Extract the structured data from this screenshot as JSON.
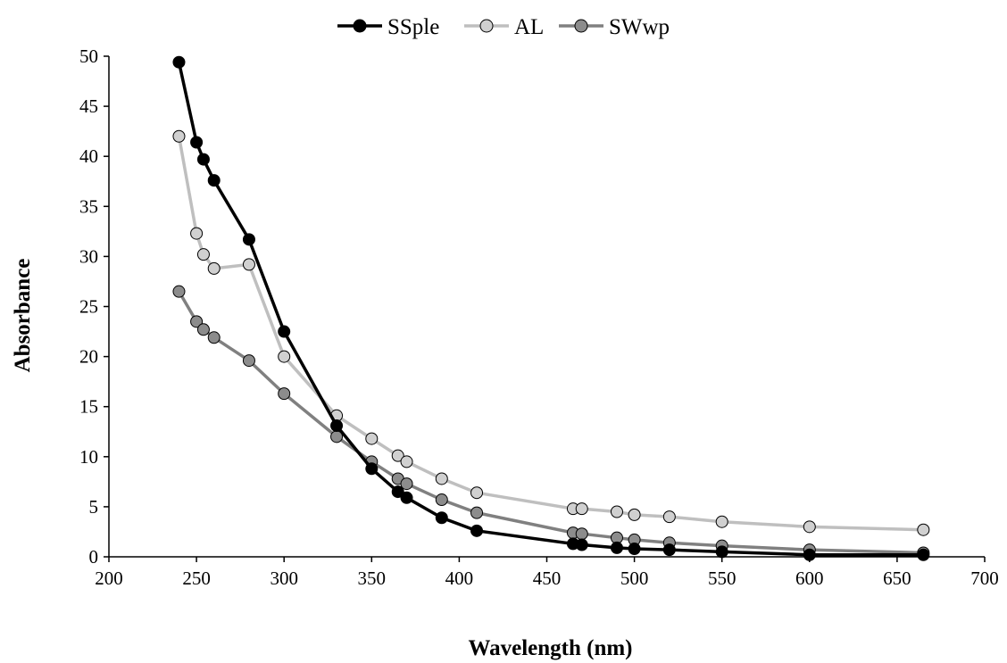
{
  "chart_data": {
    "type": "line",
    "title": "",
    "xlabel": "Wavelength (nm)",
    "ylabel": "Absorbance",
    "xlim": [
      200,
      700
    ],
    "ylim": [
      0,
      50
    ],
    "x_ticks": [
      200,
      250,
      300,
      350,
      400,
      450,
      500,
      550,
      600,
      650,
      700
    ],
    "y_ticks": [
      0,
      5,
      10,
      15,
      20,
      25,
      30,
      35,
      40,
      45,
      50
    ],
    "grid": false,
    "legend_position": "top-center",
    "series": [
      {
        "name": "SSple",
        "color": "#000000",
        "marker_fill": "#000000",
        "x": [
          240,
          250,
          254,
          260,
          280,
          300,
          330,
          350,
          365,
          370,
          390,
          410,
          465,
          470,
          490,
          500,
          520,
          550,
          600,
          665
        ],
        "y": [
          49.4,
          41.4,
          39.7,
          37.6,
          31.7,
          22.5,
          13.1,
          8.8,
          6.5,
          5.9,
          3.9,
          2.6,
          1.3,
          1.2,
          0.9,
          0.8,
          0.7,
          0.5,
          0.2,
          0.2
        ]
      },
      {
        "name": "AL",
        "color": "#bfbfbf",
        "marker_fill": "#d0d0d0",
        "x": [
          240,
          250,
          254,
          260,
          280,
          300,
          330,
          350,
          365,
          370,
          390,
          410,
          465,
          470,
          490,
          500,
          520,
          550,
          600,
          665
        ],
        "y": [
          42.0,
          32.3,
          30.2,
          28.8,
          29.2,
          20.0,
          14.1,
          11.8,
          10.1,
          9.5,
          7.8,
          6.4,
          4.8,
          4.8,
          4.5,
          4.2,
          4.0,
          3.5,
          3.0,
          2.7
        ]
      },
      {
        "name": "SWwp",
        "color": "#808080",
        "marker_fill": "#8c8c8c",
        "x": [
          240,
          250,
          254,
          260,
          280,
          300,
          330,
          350,
          365,
          370,
          390,
          410,
          465,
          470,
          490,
          500,
          520,
          550,
          600,
          665
        ],
        "y": [
          26.5,
          23.5,
          22.7,
          21.9,
          19.6,
          16.3,
          12.0,
          9.5,
          7.8,
          7.3,
          5.7,
          4.4,
          2.4,
          2.3,
          1.9,
          1.7,
          1.4,
          1.1,
          0.7,
          0.4
        ]
      }
    ]
  }
}
